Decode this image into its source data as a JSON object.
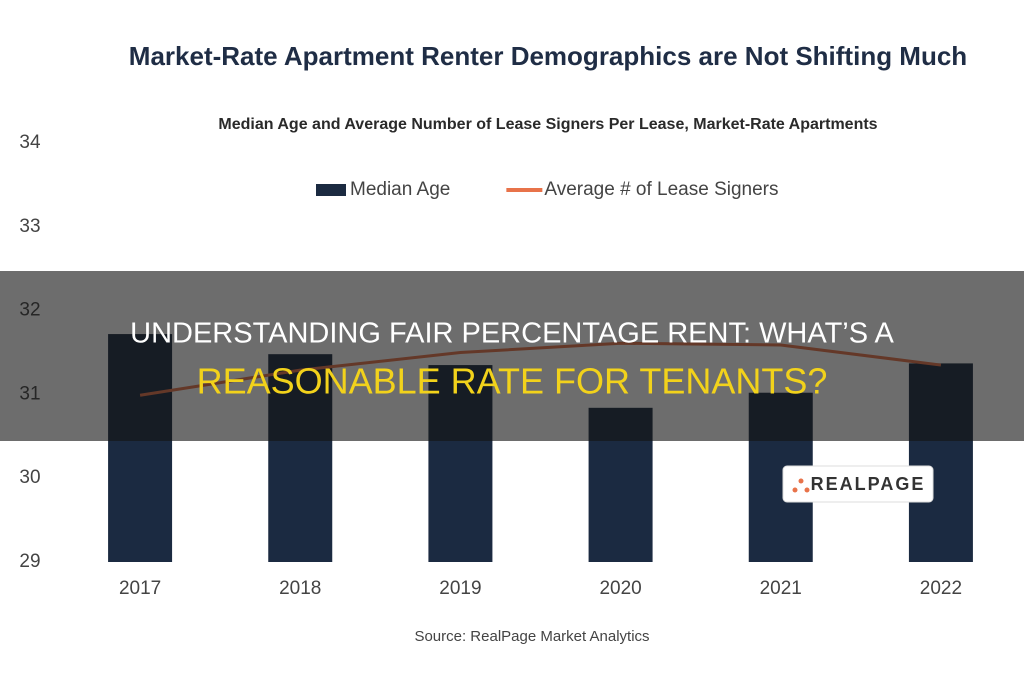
{
  "chart_data": {
    "type": "bar",
    "title": "Market-Rate Apartment Renter Demographics are Not Shifting Much",
    "subtitle": "Median Age and Average Number of Lease Signers Per Lease, Market-Rate Apartments",
    "categories": [
      "2017",
      "2018",
      "2019",
      "2020",
      "2021",
      "2022"
    ],
    "series": [
      {
        "name": "Median Age",
        "type": "bar",
        "color": "#1b2a41",
        "values": [
          31.72,
          31.48,
          31.35,
          30.84,
          31.02,
          31.37
        ]
      },
      {
        "name": "Average # of Lease Signers",
        "type": "line",
        "color": "#e8734a",
        "values": [
          30.99,
          31.29,
          31.5,
          31.61,
          31.59,
          31.35
        ]
      }
    ],
    "ylim": [
      29,
      34
    ],
    "yticks": [
      29,
      30,
      31,
      32,
      33,
      34
    ],
    "grid": false,
    "source": "Source: RealPage Market Analytics",
    "logo": "REALPAGE"
  },
  "banner": {
    "line1": "UNDERSTANDING FAIR PERCENTAGE RENT: WHAT’S A",
    "line2": "REASONABLE RATE FOR TENANTS?"
  }
}
